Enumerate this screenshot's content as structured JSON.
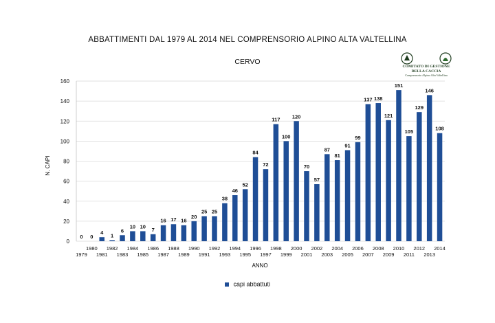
{
  "chart_data": {
    "type": "bar",
    "title": "ABBATTIMENTI DAL 1979 AL 2014 NEL COMPRENSORIO ALPINO ALTA VALTELLINA",
    "subtitle": "CERVO",
    "xlabel": "ANNO",
    "ylabel": "N. CAPI",
    "ylim": [
      0,
      160
    ],
    "yticks": [
      0,
      20,
      40,
      60,
      80,
      100,
      120,
      140,
      160
    ],
    "grid": true,
    "legend_position": "bottom",
    "categories": [
      "1979",
      "1980",
      "1981",
      "1982",
      "1983",
      "1984",
      "1985",
      "1986",
      "1987",
      "1988",
      "1989",
      "1990",
      "1991",
      "1992",
      "1993",
      "1994",
      "1995",
      "1996",
      "1997",
      "1998",
      "1999",
      "2000",
      "2001",
      "2002",
      "2003",
      "2004",
      "2005",
      "2006",
      "2007",
      "2008",
      "2009",
      "2010",
      "2011",
      "2012",
      "2013",
      "2014"
    ],
    "series": [
      {
        "name": "capi abbattuti",
        "color": "#1f4e96",
        "values": [
          0,
          0,
          4,
          1,
          6,
          10,
          10,
          7,
          16,
          17,
          16,
          20,
          25,
          25,
          38,
          46,
          52,
          84,
          72,
          117,
          100,
          120,
          70,
          57,
          87,
          81,
          91,
          99,
          137,
          138,
          121,
          151,
          105,
          129,
          146,
          108
        ]
      }
    ]
  },
  "logo": {
    "line1": "COMITATO DI GESTIONE",
    "line2": "DELLA CACCIA",
    "line3": "Comprensorio Alpino Alta Valtellina"
  }
}
